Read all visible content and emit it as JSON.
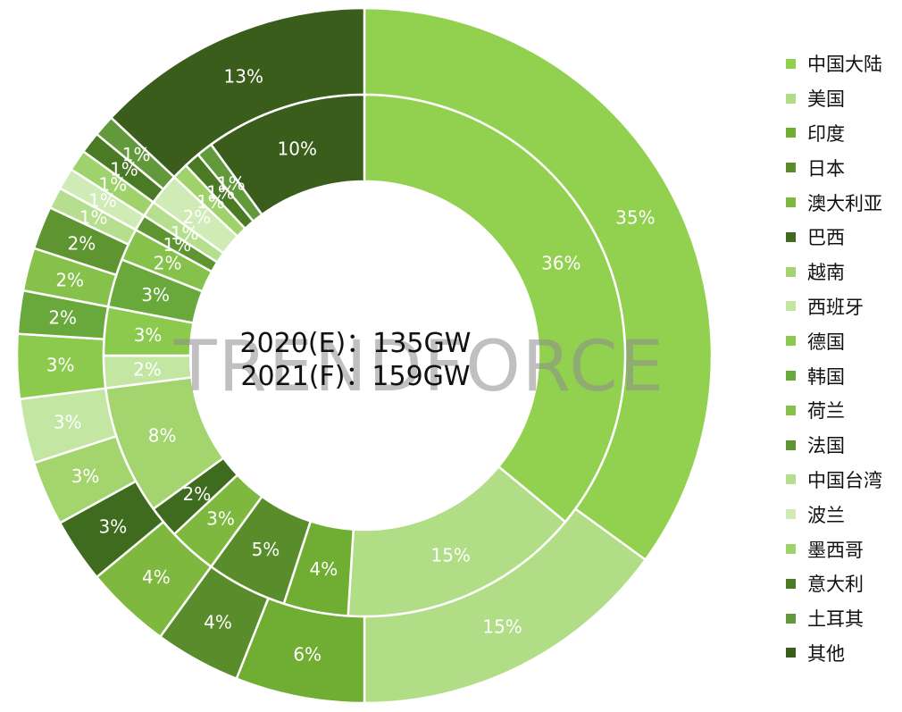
{
  "chart_data": {
    "type": "pie",
    "subtype": "double-ring donut",
    "center_text": [
      "2020(E)：135GW",
      "2021(F)：159GW"
    ],
    "watermark": "TRENDFORCE",
    "categories": [
      "中国大陆",
      "美国",
      "印度",
      "日本",
      "澳大利亚",
      "巴西",
      "越南",
      "西班牙",
      "德国",
      "韩国",
      "荷兰",
      "法国",
      "中国台湾",
      "波兰",
      "墨西哥",
      "意大利",
      "土耳其",
      "其他"
    ],
    "colors": [
      "#92d050",
      "#b0dd85",
      "#6fad33",
      "#598c2a",
      "#7fb83e",
      "#3f6b1f",
      "#a3d46e",
      "#c3e6a2",
      "#8cca4e",
      "#69a83a",
      "#86c24b",
      "#5e9530",
      "#b5df8e",
      "#d0ebb6",
      "#9fd26a",
      "#4b7a25",
      "#62993a",
      "#3a5d1c"
    ],
    "series": [
      {
        "name": "2020(E)",
        "ring": "inner",
        "values": [
          36,
          15,
          4,
          5,
          3,
          2,
          8,
          2,
          3,
          3,
          2,
          1,
          1,
          2,
          1,
          1,
          1,
          10
        ],
        "labels": [
          "36%",
          "15%",
          "4%",
          "5%",
          "3%",
          "2%",
          "8%",
          "2%",
          "3%",
          "3%",
          "2%",
          "1%",
          "1%",
          "2%",
          "1%",
          "1%",
          "1%",
          "10%"
        ]
      },
      {
        "name": "2021(F)",
        "ring": "outer",
        "values": [
          35,
          15,
          6,
          4,
          4,
          3,
          3,
          3,
          3,
          2,
          2,
          2,
          1,
          1,
          1,
          1,
          1,
          13
        ],
        "labels": [
          "35%",
          "15%",
          "6%",
          "4%",
          "4%",
          "3%",
          "3%",
          "3%",
          "3%",
          "2%",
          "2%",
          "2%",
          "1%",
          "1%",
          "1%",
          "1%",
          "1%",
          "13%"
        ]
      }
    ],
    "legend_position": "right"
  }
}
